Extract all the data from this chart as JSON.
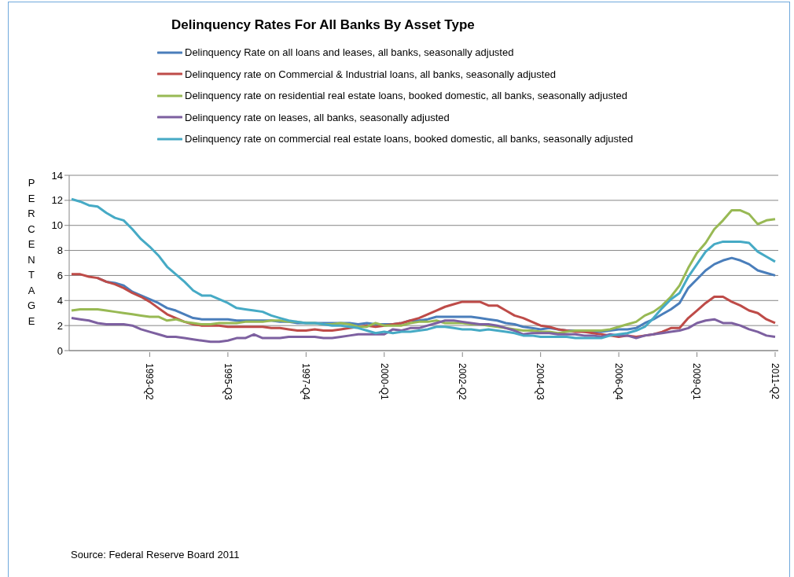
{
  "chart_data": {
    "type": "line",
    "title": "Delinquency Rates For All Banks By Asset Type",
    "ylabel": "PERCENTAGE",
    "annotations": [
      "Source: Federal Reserve Board 2011"
    ],
    "categories": [
      null,
      null,
      null,
      null,
      null,
      null,
      null,
      null,
      null,
      "1993-Q2",
      null,
      null,
      null,
      null,
      null,
      null,
      null,
      null,
      "1995-Q3",
      null,
      null,
      null,
      null,
      null,
      null,
      null,
      null,
      "1997-Q4",
      null,
      null,
      null,
      null,
      null,
      null,
      null,
      null,
      "2000-Q1",
      null,
      null,
      null,
      null,
      null,
      null,
      null,
      null,
      "2002-Q2",
      null,
      null,
      null,
      null,
      null,
      null,
      null,
      null,
      "2004-Q3",
      null,
      null,
      null,
      null,
      null,
      null,
      null,
      null,
      "2006-Q4",
      null,
      null,
      null,
      null,
      null,
      null,
      null,
      null,
      "2009-Q1",
      null,
      null,
      null,
      null,
      null,
      null,
      null,
      null,
      "2011-Q2"
    ],
    "series": [
      {
        "name": "Delinquency Rate on all loans and leases, all banks, seasonally adjusted",
        "color": "#4a7ebb",
        "values": [
          null,
          null,
          null,
          5.8,
          5.5,
          5.4,
          5.2,
          4.7,
          4.4,
          4.1,
          3.8,
          3.4,
          3.2,
          2.9,
          2.6,
          2.5,
          2.5,
          2.5,
          2.5,
          2.4,
          2.4,
          2.4,
          2.4,
          2.4,
          2.3,
          2.3,
          2.2,
          2.2,
          2.2,
          2.2,
          2.2,
          2.2,
          2.2,
          2.1,
          2.2,
          2.1,
          2.1,
          2.1,
          2.2,
          2.4,
          2.4,
          2.5,
          2.7,
          2.7,
          2.7,
          2.7,
          2.7,
          2.6,
          2.5,
          2.4,
          2.2,
          2.1,
          1.9,
          1.8,
          1.7,
          1.8,
          1.7,
          1.6,
          1.6,
          1.5,
          1.5,
          1.5,
          1.6,
          1.7,
          1.7,
          1.8,
          2.2,
          2.5,
          2.9,
          3.3,
          3.8,
          5.0,
          5.7,
          6.4,
          6.9,
          7.2,
          7.4,
          7.2,
          6.9,
          6.4,
          6.2,
          6.0
        ]
      },
      {
        "name": "Delinquency rate on Commercial & Industrial loans, all banks, seasonally adjusted",
        "color": "#be4b48",
        "values": [
          6.1,
          6.1,
          5.9,
          5.8,
          5.5,
          5.3,
          5.0,
          4.6,
          4.3,
          3.9,
          3.4,
          2.9,
          2.6,
          2.3,
          2.1,
          2.0,
          2.0,
          2.0,
          1.9,
          1.9,
          1.9,
          1.9,
          1.9,
          1.8,
          1.8,
          1.7,
          1.6,
          1.6,
          1.7,
          1.6,
          1.6,
          1.7,
          1.8,
          1.9,
          2.0,
          1.9,
          2.0,
          2.1,
          2.2,
          2.4,
          2.6,
          2.9,
          3.2,
          3.5,
          3.7,
          3.9,
          3.9,
          3.9,
          3.6,
          3.6,
          3.2,
          2.8,
          2.6,
          2.3,
          2.0,
          1.9,
          1.7,
          1.6,
          1.5,
          1.5,
          1.4,
          1.3,
          1.2,
          1.1,
          1.2,
          1.1,
          1.2,
          1.3,
          1.5,
          1.8,
          1.8,
          2.6,
          3.2,
          3.8,
          4.3,
          4.3,
          3.9,
          3.6,
          3.2,
          3.0,
          2.5,
          2.2
        ]
      },
      {
        "name": "Delinquency rate on residential real estate loans, booked domestic, all banks, seasonally adjusted",
        "color": "#98b954",
        "values": [
          3.2,
          3.3,
          3.3,
          3.3,
          3.2,
          3.1,
          3.0,
          2.9,
          2.8,
          2.7,
          2.7,
          2.4,
          2.5,
          2.3,
          2.2,
          2.1,
          2.1,
          2.2,
          2.2,
          2.2,
          2.3,
          2.3,
          2.3,
          2.4,
          2.4,
          2.3,
          2.3,
          2.2,
          2.2,
          2.1,
          2.1,
          2.2,
          2.1,
          1.9,
          1.9,
          2.2,
          2.0,
          2.0,
          2.0,
          2.2,
          2.3,
          2.3,
          2.4,
          2.2,
          2.2,
          2.2,
          2.1,
          2.1,
          2.0,
          1.9,
          1.8,
          1.7,
          1.6,
          1.6,
          1.5,
          1.5,
          1.4,
          1.5,
          1.6,
          1.6,
          1.6,
          1.6,
          1.7,
          1.9,
          2.1,
          2.3,
          2.8,
          3.1,
          3.6,
          4.3,
          5.2,
          6.6,
          7.8,
          8.6,
          9.7,
          10.4,
          11.2,
          11.2,
          10.9,
          10.1,
          10.4,
          10.5
        ]
      },
      {
        "name": "Delinquency rate on leases, all banks, seasonally adjusted",
        "color": "#7d60a0",
        "values": [
          2.6,
          2.5,
          2.4,
          2.2,
          2.1,
          2.1,
          2.1,
          2.0,
          1.7,
          1.5,
          1.3,
          1.1,
          1.1,
          1.0,
          0.9,
          0.8,
          0.7,
          0.7,
          0.8,
          1.0,
          1.0,
          1.3,
          1.0,
          1.0,
          1.0,
          1.1,
          1.1,
          1.1,
          1.1,
          1.0,
          1.0,
          1.1,
          1.2,
          1.3,
          1.3,
          1.3,
          1.3,
          1.7,
          1.6,
          1.8,
          1.8,
          2.0,
          2.2,
          2.4,
          2.4,
          2.3,
          2.2,
          2.1,
          2.1,
          2.0,
          1.8,
          1.6,
          1.3,
          1.4,
          1.4,
          1.4,
          1.3,
          1.3,
          1.3,
          1.2,
          1.2,
          1.1,
          1.3,
          1.2,
          1.2,
          1.0,
          1.2,
          1.3,
          1.4,
          1.5,
          1.6,
          1.8,
          2.2,
          2.4,
          2.5,
          2.2,
          2.2,
          2.0,
          1.7,
          1.5,
          1.2,
          1.1
        ]
      },
      {
        "name": "Delinquency rate on commercial real estate loans, booked domestic, all banks, seasonally adjusted",
        "color": "#46aac5",
        "values": [
          12.1,
          11.9,
          11.6,
          11.5,
          11.0,
          10.6,
          10.4,
          9.7,
          8.9,
          8.3,
          7.6,
          6.7,
          6.1,
          5.5,
          4.8,
          4.4,
          4.4,
          4.1,
          3.8,
          3.4,
          3.3,
          3.2,
          3.1,
          2.8,
          2.6,
          2.4,
          2.3,
          2.2,
          2.2,
          2.1,
          2.0,
          2.0,
          1.9,
          1.8,
          1.6,
          1.4,
          1.5,
          1.4,
          1.5,
          1.5,
          1.6,
          1.7,
          1.9,
          1.9,
          1.8,
          1.7,
          1.7,
          1.6,
          1.7,
          1.6,
          1.5,
          1.4,
          1.2,
          1.2,
          1.1,
          1.1,
          1.1,
          1.1,
          1.0,
          1.0,
          1.0,
          1.0,
          1.2,
          1.3,
          1.4,
          1.6,
          1.9,
          2.6,
          3.4,
          4.1,
          4.6,
          5.9,
          6.9,
          7.9,
          8.5,
          8.7,
          8.7,
          8.7,
          8.6,
          7.9,
          7.5,
          7.1
        ]
      }
    ],
    "ylim": [
      0,
      14
    ],
    "yticks": [
      0,
      2,
      4,
      6,
      8,
      10,
      12,
      14
    ],
    "grid": "y",
    "legend": "top",
    "marker": "none",
    "line_style": "solid"
  }
}
